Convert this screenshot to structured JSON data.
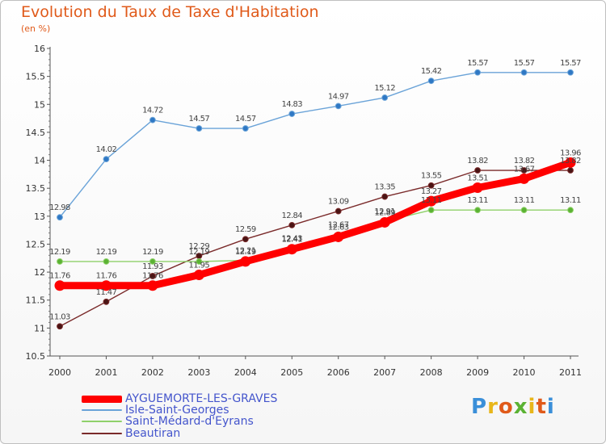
{
  "title": "Evolution du Taux de Taxe d'Habitation",
  "subtitle": "(en %)",
  "brand": {
    "text": "Proxiti",
    "colors": [
      "#3a8fd9",
      "#e8b61a",
      "#e05a1a",
      "#5bb233",
      "#e8b61a",
      "#e05a1a",
      "#3a8fd9"
    ]
  },
  "chart_data": {
    "type": "line",
    "x": [
      "2000",
      "2001",
      "2002",
      "2003",
      "2004",
      "2005",
      "2006",
      "2007",
      "2008",
      "2009",
      "2010",
      "2011"
    ],
    "ylim": [
      10.5,
      16
    ],
    "yticks": [
      "10.5",
      "11",
      "11.5",
      "12",
      "12.5",
      "13",
      "13.5",
      "14",
      "14.5",
      "15",
      "15.5",
      "16"
    ],
    "grid": false,
    "legend": "bottom-left",
    "series": [
      {
        "name": "AYGUEMORTE-LES-GRAVES",
        "color": "#ff0000",
        "values": [
          11.76,
          11.76,
          11.76,
          11.95,
          12.19,
          12.41,
          12.63,
          12.89,
          13.27,
          13.51,
          13.67,
          13.96
        ],
        "labels": [
          "11.76",
          "11.76",
          "11.76",
          "11.95",
          "12.19",
          "12.41",
          "12.63",
          "12.89",
          "13.27",
          "13.51",
          "13.67",
          "13.96"
        ]
      },
      {
        "name": "Isle-Saint-Georges",
        "color": "#6aa3d8",
        "values": [
          12.98,
          14.02,
          14.72,
          14.57,
          14.57,
          14.83,
          14.97,
          15.12,
          15.42,
          15.57,
          15.57,
          15.57
        ],
        "labels": [
          "12.98",
          "14.02",
          "14.72",
          "14.57",
          "14.57",
          "14.83",
          "14.97",
          "15.12",
          "15.42",
          "15.57",
          "15.57",
          "15.57"
        ]
      },
      {
        "name": "Saint-Médard-d'Eyrans",
        "color": "#8fd16a",
        "values": [
          12.19,
          12.19,
          12.19,
          12.19,
          12.21,
          12.43,
          12.67,
          12.91,
          13.11,
          13.11,
          13.11,
          13.11
        ],
        "labels": [
          "12.19",
          "12.19",
          "12.19",
          "12.19",
          "12.21",
          "12.43",
          "12.67",
          "12.91",
          "13.11",
          "13.11",
          "13.11",
          "13.11"
        ]
      },
      {
        "name": "Beautiran",
        "color": "#7a2a2a",
        "values": [
          11.03,
          11.47,
          11.93,
          12.29,
          12.59,
          12.84,
          13.09,
          13.35,
          13.55,
          13.82,
          13.82,
          13.82
        ],
        "labels": [
          "11.03",
          "11.47",
          "11.93",
          "12.29",
          "12.59",
          "12.84",
          "13.09",
          "13.35",
          "13.55",
          "13.82",
          "13.82",
          "13.82"
        ]
      }
    ]
  }
}
